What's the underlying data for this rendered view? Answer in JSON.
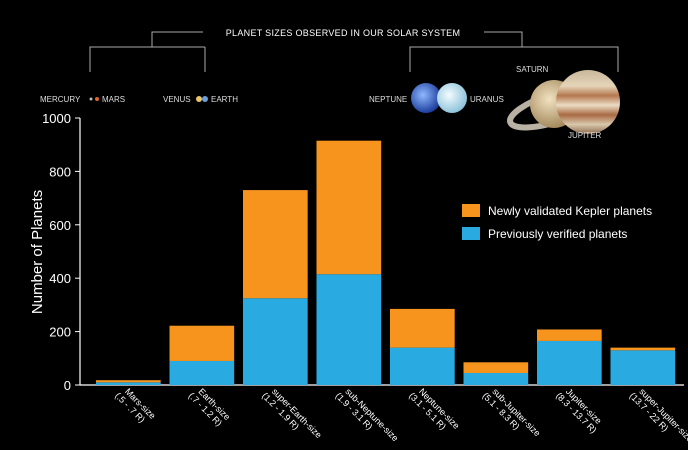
{
  "banner": {
    "title": "PLANET SIZES OBSERVED IN OUR SOLAR SYSTEM",
    "planets": {
      "mercury": "MERCURY",
      "mars": "MARS",
      "venus": "VENUS",
      "earth": "EARTH",
      "neptune": "NEPTUNE",
      "uranus": "URANUS",
      "saturn": "SATURN",
      "jupiter": "JUPITER"
    }
  },
  "colors": {
    "new": "#F7941D",
    "previous": "#29ABE2",
    "background": "#000000"
  },
  "chart_data": {
    "type": "bar",
    "stacked": true,
    "ylabel": "Number of Planets",
    "ylim": [
      0,
      1000
    ],
    "yticks": [
      0,
      200,
      400,
      600,
      800,
      1000
    ],
    "categories": [
      "Mars-size",
      "Earth-size",
      "super-Earth-size",
      "sub-Neptune-size",
      "Neptune-size",
      "sub-Jupiter-size",
      "Jupiter-size",
      "super-Jupiter-size"
    ],
    "category_ranges": [
      ".5 - .7 R",
      ".7 - 1.2 R",
      "1.2 - 1.9 R",
      "1.9 - 3.1 R",
      "3.1 - 5.1 R",
      "5.1 - 8.3 R",
      "8.3 - 13.7 R",
      "13.7 - 22 R"
    ],
    "series": [
      {
        "name": "Previously verified planets",
        "values": [
          10,
          90,
          325,
          415,
          140,
          45,
          165,
          130
        ]
      },
      {
        "name": "Newly validated Kepler planets",
        "values": [
          8,
          132,
          405,
          500,
          145,
          40,
          43,
          10
        ]
      }
    ],
    "legend": [
      "Newly validated Kepler planets",
      "Previously verified planets"
    ],
    "legend_position": "right",
    "grid": false
  }
}
